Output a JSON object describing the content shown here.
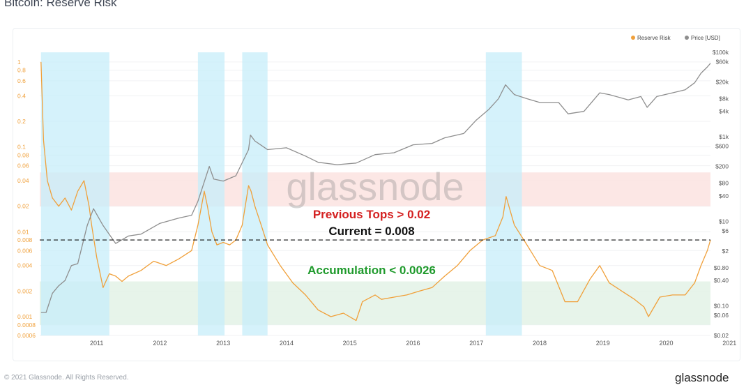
{
  "page_title": "Bitcoin: Reserve Risk",
  "footer": {
    "copyright": "© 2021 Glassnode. All Rights Reserved.",
    "logo": "glassnode"
  },
  "watermark": "glassnode",
  "colors": {
    "reserve_risk": "#f0a03a",
    "price": "#8e8e8e",
    "highlight": "#c7eefa",
    "tops_band": "#fbe3e1",
    "accumulation_band": "#e4f3e8",
    "tops_text": "#d42020",
    "accumulation_text": "#1f9a2c",
    "current_text": "#111111"
  },
  "chart_data": {
    "type": "line",
    "title": "Bitcoin: Reserve Risk",
    "legend": {
      "placement": "top-right",
      "entries": [
        "Reserve Risk",
        "Price [USD]"
      ]
    },
    "x_ticks": [
      "2011",
      "2012",
      "2013",
      "2014",
      "2015",
      "2016",
      "2017",
      "2018",
      "2019",
      "2020",
      "2021"
    ],
    "xlim": [
      2010.6,
      2021.2
    ],
    "left_axis": {
      "scale": "log",
      "ylim": [
        0.0006,
        1.3
      ],
      "ticks": [
        "1",
        "0.8",
        "0.6",
        "0.4",
        "0.2",
        "0.1",
        "0.08",
        "0.06",
        "0.04",
        "0.02",
        "0.01",
        "0.008",
        "0.006",
        "0.004",
        "0.002",
        "0.001",
        "0.0008",
        "0.0006"
      ]
    },
    "right_axis": {
      "scale": "log",
      "ylim": [
        0.02,
        100000
      ],
      "ticks": [
        "$100k",
        "$60k",
        "$20k",
        "$8k",
        "$4k",
        "$1k",
        "$600",
        "$200",
        "$80",
        "$40",
        "$10",
        "$6",
        "$2",
        "$0.80",
        "$0.40",
        "$0.10",
        "$0.06",
        "$0.02"
      ]
    },
    "grid": true,
    "series": [
      {
        "name": "Reserve Risk",
        "axis": "left",
        "x": [
          2010.62,
          2010.66,
          2010.72,
          2010.8,
          2010.9,
          2011.0,
          2011.1,
          2011.2,
          2011.3,
          2011.38,
          2011.42,
          2011.5,
          2011.6,
          2011.7,
          2011.8,
          2011.9,
          2012.0,
          2012.2,
          2012.4,
          2012.6,
          2012.8,
          2013.0,
          2013.1,
          2013.2,
          2013.25,
          2013.32,
          2013.4,
          2013.5,
          2013.6,
          2013.7,
          2013.8,
          2013.9,
          2013.94,
          2014.0,
          2014.1,
          2014.2,
          2014.4,
          2014.6,
          2014.8,
          2015.0,
          2015.2,
          2015.4,
          2015.6,
          2015.7,
          2015.9,
          2016.0,
          2016.2,
          2016.4,
          2016.6,
          2016.8,
          2017.0,
          2017.2,
          2017.4,
          2017.6,
          2017.8,
          2017.92,
          2017.97,
          2018.1,
          2018.3,
          2018.5,
          2018.7,
          2018.9,
          2019.1,
          2019.3,
          2019.45,
          2019.6,
          2019.8,
          2020.0,
          2020.15,
          2020.22,
          2020.4,
          2020.6,
          2020.8,
          2020.95,
          2021.05,
          2021.15,
          2021.2
        ],
        "values": [
          1.0,
          0.12,
          0.04,
          0.025,
          0.02,
          0.025,
          0.018,
          0.03,
          0.04,
          0.02,
          0.012,
          0.005,
          0.0022,
          0.0032,
          0.003,
          0.0026,
          0.003,
          0.0035,
          0.0045,
          0.004,
          0.0048,
          0.006,
          0.012,
          0.03,
          0.02,
          0.01,
          0.007,
          0.0075,
          0.007,
          0.008,
          0.012,
          0.035,
          0.03,
          0.02,
          0.012,
          0.007,
          0.004,
          0.0025,
          0.0018,
          0.0012,
          0.001,
          0.0011,
          0.0009,
          0.0015,
          0.0018,
          0.0016,
          0.0017,
          0.0018,
          0.002,
          0.0022,
          0.003,
          0.004,
          0.006,
          0.008,
          0.009,
          0.015,
          0.026,
          0.012,
          0.007,
          0.004,
          0.0035,
          0.0015,
          0.0015,
          0.0028,
          0.004,
          0.0025,
          0.002,
          0.0016,
          0.0013,
          0.001,
          0.0017,
          0.0018,
          0.0018,
          0.0025,
          0.004,
          0.006,
          0.008
        ]
      },
      {
        "name": "Price [USD]",
        "axis": "right",
        "x": [
          2010.62,
          2010.7,
          2010.8,
          2010.9,
          2011.0,
          2011.1,
          2011.2,
          2011.35,
          2011.45,
          2011.6,
          2011.8,
          2012.0,
          2012.2,
          2012.5,
          2012.8,
          2013.0,
          2013.1,
          2013.28,
          2013.35,
          2013.5,
          2013.7,
          2013.9,
          2013.93,
          2014.0,
          2014.2,
          2014.5,
          2014.8,
          2015.0,
          2015.3,
          2015.6,
          2015.9,
          2016.2,
          2016.5,
          2016.8,
          2017.0,
          2017.3,
          2017.5,
          2017.7,
          2017.85,
          2017.96,
          2018.1,
          2018.3,
          2018.5,
          2018.8,
          2018.95,
          2019.2,
          2019.45,
          2019.6,
          2019.9,
          2020.1,
          2020.2,
          2020.35,
          2020.6,
          2020.8,
          2020.95,
          2021.05,
          2021.15,
          2021.2
        ],
        "values": [
          0.07,
          0.07,
          0.2,
          0.3,
          0.4,
          0.9,
          1.0,
          8.0,
          20.0,
          8.0,
          3.0,
          4.5,
          5.0,
          9.0,
          12.0,
          14.0,
          30.0,
          200.0,
          100.0,
          90.0,
          120.0,
          500.0,
          1100.0,
          800.0,
          500.0,
          550.0,
          350.0,
          250.0,
          220.0,
          240.0,
          380.0,
          420.0,
          650.0,
          700.0,
          950.0,
          1200.0,
          2500.0,
          4500.0,
          8000.0,
          17000.0,
          10000.0,
          8000.0,
          6500.0,
          6500.0,
          3500.0,
          4000.0,
          11000.0,
          10000.0,
          7500.0,
          9000.0,
          5000.0,
          9000.0,
          11000.0,
          13000.0,
          19000.0,
          32000.0,
          45000.0,
          55000.0
        ]
      }
    ],
    "highlight_periods": [
      [
        2010.62,
        2011.7
      ],
      [
        2013.1,
        2013.52
      ],
      [
        2013.8,
        2014.2
      ],
      [
        2017.65,
        2018.22
      ]
    ],
    "bands": {
      "previous_tops": [
        0.02,
        0.05
      ],
      "accumulation": [
        0.0008,
        0.0026
      ]
    },
    "current_level": 0.008,
    "annotations": {
      "tops": "Previous Tops > 0.02",
      "current": "Current = 0.008",
      "accumulation": "Accumulation < 0.0026"
    }
  }
}
